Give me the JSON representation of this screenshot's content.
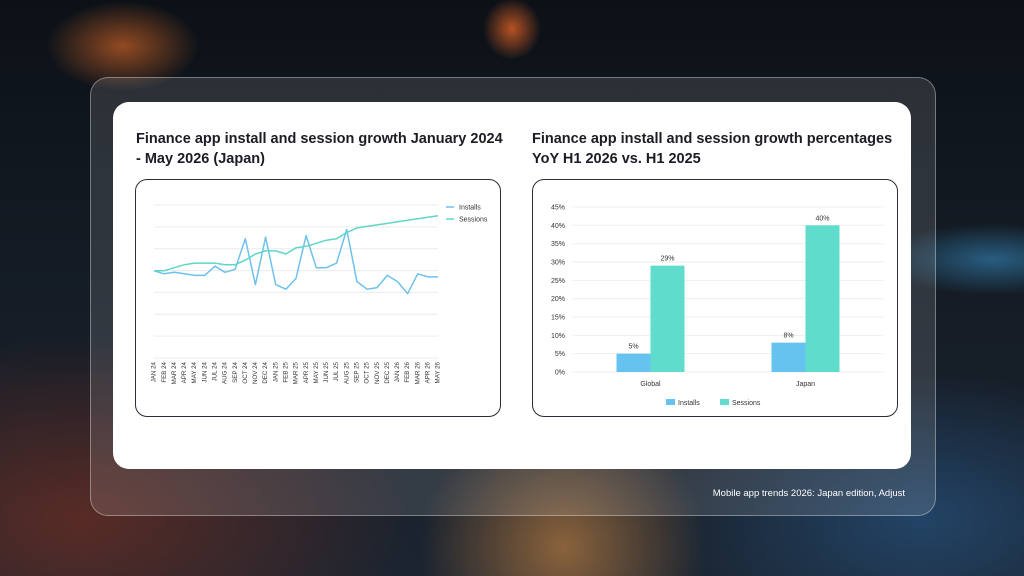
{
  "caption": "Mobile app trends 2026: Japan edition, Adjust",
  "chart_data": [
    {
      "type": "line",
      "title": "Finance app install and session growth January 2024 - May 2026 (Japan)",
      "x": [
        "JAN 24",
        "FEB 24",
        "MAR 24",
        "APR 24",
        "MAY 24",
        "JUN 24",
        "JUL 24",
        "AUG 24",
        "SEP 24",
        "OCT 24",
        "NOV 24",
        "DEC 24",
        "JAN 25",
        "FEB 25",
        "MAR 25",
        "APR 25",
        "MAY 25",
        "JUN 25",
        "JUL 25",
        "AUG 25",
        "SEP 25",
        "OCT 25",
        "NOV 25",
        "DEC 25",
        "JAN 26",
        "FEB 26",
        "MAR 26",
        "APR 26",
        "MAY 26"
      ],
      "series": [
        {
          "name": "Installs",
          "color": "#6ec1ec",
          "values": [
            57,
            55,
            56,
            55,
            54,
            54,
            60,
            56,
            58,
            78,
            48,
            79,
            48,
            45,
            52,
            80,
            59,
            59,
            62,
            84,
            50,
            45,
            46,
            54,
            50,
            42,
            55,
            53,
            53
          ]
        },
        {
          "name": "Sessions",
          "color": "#5fd6c7",
          "values": [
            57,
            57,
            59,
            61,
            62,
            62,
            62,
            61,
            61,
            64,
            68,
            70,
            70,
            68,
            72,
            73,
            75,
            77,
            78,
            82,
            85,
            86,
            87,
            88,
            89,
            90,
            91,
            92,
            93
          ]
        }
      ],
      "ylim": [
        0,
        100
      ],
      "grid": true,
      "legend": "top-right"
    },
    {
      "type": "bar",
      "title": "Finance app install and session growth percentages YoY H1 2026 vs. H1 2025",
      "categories": [
        "Global",
        "Japan"
      ],
      "series": [
        {
          "name": "Installs",
          "color": "#66c3f0",
          "values": [
            5,
            8
          ],
          "labels": [
            "5%",
            "8%"
          ]
        },
        {
          "name": "Sessions",
          "color": "#5fdccb",
          "values": [
            29,
            40
          ],
          "labels": [
            "29%",
            "40%"
          ]
        }
      ],
      "yticks": [
        "0%",
        "5%",
        "10%",
        "15%",
        "20%",
        "25%",
        "30%",
        "35%",
        "40%",
        "45%"
      ],
      "ylim": [
        0,
        45
      ],
      "grid": true,
      "legend": "bottom"
    }
  ]
}
